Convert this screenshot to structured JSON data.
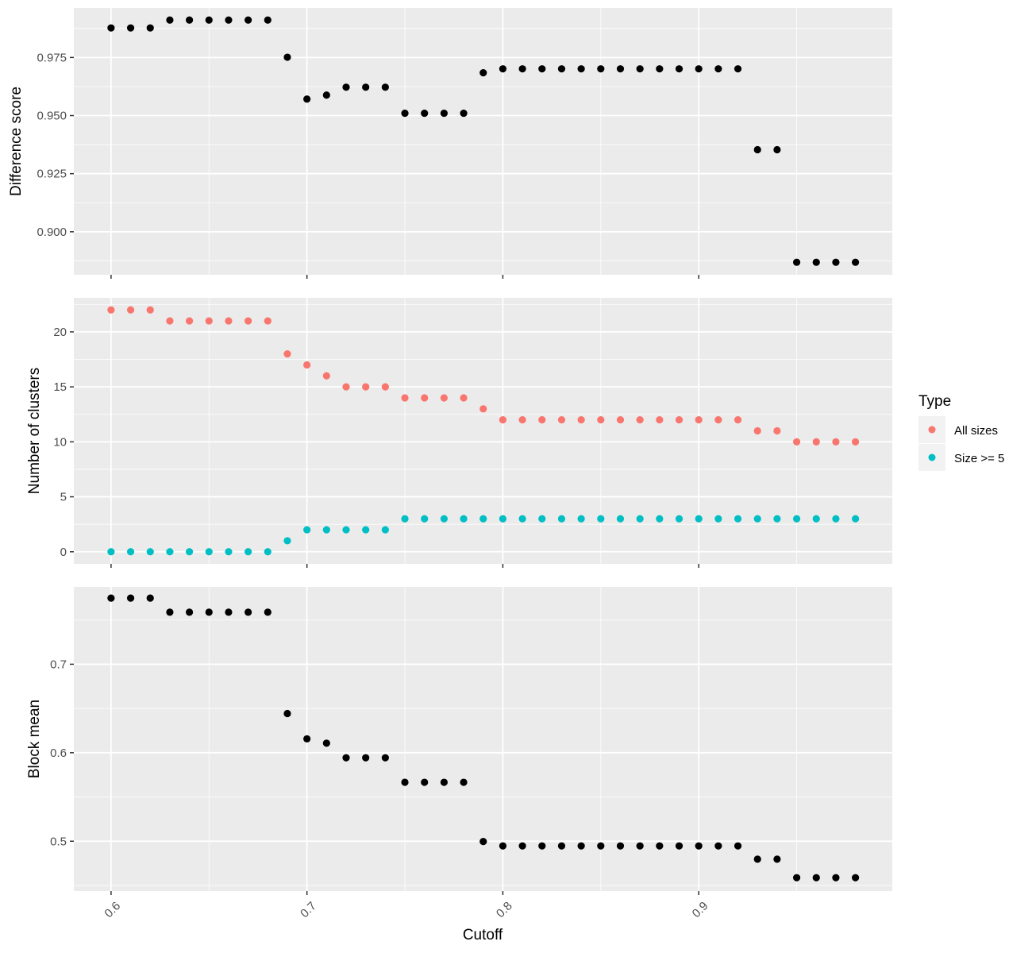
{
  "chart_data": [
    {
      "type": "scatter",
      "ylabel": "Difference score",
      "xlim": [
        0.581,
        0.9988
      ],
      "ylim": [
        0.8815,
        0.9963
      ],
      "y_ticks": [
        0.9,
        0.925,
        0.95,
        0.975
      ],
      "y_tick_labels": [
        "0.900",
        "0.925",
        "0.950",
        "0.975"
      ],
      "grid": true,
      "series": [
        {
          "color": "#000000",
          "x": [
            0.6,
            0.61,
            0.62,
            0.63,
            0.64,
            0.65,
            0.66,
            0.67,
            0.68,
            0.69,
            0.7,
            0.71,
            0.72,
            0.73,
            0.74,
            0.75,
            0.76,
            0.77,
            0.78,
            0.79,
            0.8,
            0.81,
            0.82,
            0.83,
            0.84,
            0.85,
            0.86,
            0.87,
            0.88,
            0.89,
            0.9,
            0.91,
            0.92,
            0.93,
            0.94,
            0.95,
            0.96,
            0.97,
            0.98
          ],
          "y": [
            0.9877,
            0.9877,
            0.9877,
            0.9911,
            0.9911,
            0.9911,
            0.9911,
            0.9911,
            0.9911,
            0.9751,
            0.9571,
            0.9588,
            0.9622,
            0.9622,
            0.9622,
            0.951,
            0.951,
            0.951,
            0.951,
            0.9684,
            0.9701,
            0.9701,
            0.9701,
            0.9701,
            0.9701,
            0.9701,
            0.9701,
            0.9701,
            0.9701,
            0.9701,
            0.9701,
            0.9701,
            0.9701,
            0.9353,
            0.9353,
            0.8869,
            0.8869,
            0.8869,
            0.8869
          ]
        }
      ]
    },
    {
      "type": "scatter",
      "ylabel": "Number of clusters",
      "xlim": [
        0.581,
        0.9988
      ],
      "ylim": [
        -1.1,
        23.1
      ],
      "y_ticks": [
        0,
        5,
        10,
        15,
        20
      ],
      "y_tick_labels": [
        "0",
        "5",
        "10",
        "15",
        "20"
      ],
      "grid": true,
      "series": [
        {
          "name": "All sizes",
          "color": "#F8766D",
          "x": [
            0.6,
            0.61,
            0.62,
            0.63,
            0.64,
            0.65,
            0.66,
            0.67,
            0.68,
            0.69,
            0.7,
            0.71,
            0.72,
            0.73,
            0.74,
            0.75,
            0.76,
            0.77,
            0.78,
            0.79,
            0.8,
            0.81,
            0.82,
            0.83,
            0.84,
            0.85,
            0.86,
            0.87,
            0.88,
            0.89,
            0.9,
            0.91,
            0.92,
            0.93,
            0.94,
            0.95,
            0.96,
            0.97,
            0.98
          ],
          "y": [
            22,
            22,
            22,
            21,
            21,
            21,
            21,
            21,
            21,
            18,
            17,
            16,
            15,
            15,
            15,
            14,
            14,
            14,
            14,
            13,
            12,
            12,
            12,
            12,
            12,
            12,
            12,
            12,
            12,
            12,
            12,
            12,
            12,
            11,
            11,
            10,
            10,
            10,
            10
          ]
        },
        {
          "name": "Size >= 5",
          "color": "#00BFC4",
          "x": [
            0.6,
            0.61,
            0.62,
            0.63,
            0.64,
            0.65,
            0.66,
            0.67,
            0.68,
            0.69,
            0.7,
            0.71,
            0.72,
            0.73,
            0.74,
            0.75,
            0.76,
            0.77,
            0.78,
            0.79,
            0.8,
            0.81,
            0.82,
            0.83,
            0.84,
            0.85,
            0.86,
            0.87,
            0.88,
            0.89,
            0.9,
            0.91,
            0.92,
            0.93,
            0.94,
            0.95,
            0.96,
            0.97,
            0.98
          ],
          "y": [
            0,
            0,
            0,
            0,
            0,
            0,
            0,
            0,
            0,
            1,
            2,
            2,
            2,
            2,
            2,
            3,
            3,
            3,
            3,
            3,
            3,
            3,
            3,
            3,
            3,
            3,
            3,
            3,
            3,
            3,
            3,
            3,
            3,
            3,
            3,
            3,
            3,
            3,
            3
          ]
        }
      ]
    },
    {
      "type": "scatter",
      "ylabel": "Block mean",
      "xlabel": "Cutoff",
      "xlim": [
        0.581,
        0.9988
      ],
      "ylim": [
        0.4437,
        0.7874
      ],
      "y_ticks": [
        0.5,
        0.6,
        0.7
      ],
      "y_tick_labels": [
        "0.5",
        "0.6",
        "0.7"
      ],
      "grid": true,
      "series": [
        {
          "color": "#000000",
          "x": [
            0.6,
            0.61,
            0.62,
            0.63,
            0.64,
            0.65,
            0.66,
            0.67,
            0.68,
            0.69,
            0.7,
            0.71,
            0.72,
            0.73,
            0.74,
            0.75,
            0.76,
            0.77,
            0.78,
            0.79,
            0.8,
            0.81,
            0.82,
            0.83,
            0.84,
            0.85,
            0.86,
            0.87,
            0.88,
            0.89,
            0.9,
            0.91,
            0.92,
            0.93,
            0.94,
            0.95,
            0.96,
            0.97,
            0.98
          ],
          "y": [
            0.7747,
            0.7747,
            0.7747,
            0.7588,
            0.7588,
            0.7588,
            0.7588,
            0.7588,
            0.7588,
            0.6443,
            0.6157,
            0.6108,
            0.5943,
            0.5943,
            0.5943,
            0.5666,
            0.5666,
            0.5666,
            0.5666,
            0.4997,
            0.4947,
            0.4947,
            0.4947,
            0.4947,
            0.4947,
            0.4947,
            0.4947,
            0.4947,
            0.4947,
            0.4947,
            0.4947,
            0.4947,
            0.4947,
            0.4797,
            0.4797,
            0.4588,
            0.4588,
            0.4588,
            0.4588
          ]
        }
      ]
    }
  ],
  "shared_x_axis": {
    "title": "Cutoff",
    "ticks": [
      0.6,
      0.7,
      0.8,
      0.9
    ],
    "tick_labels": [
      "0.6",
      "0.7",
      "0.8",
      "0.9"
    ],
    "tick_label_rotation_deg": -45
  },
  "legend": {
    "title": "Type",
    "placement": "right",
    "items": [
      {
        "label": "All sizes",
        "color": "#F8766D"
      },
      {
        "label": "Size >= 5",
        "color": "#00BFC4"
      }
    ]
  },
  "theme": {
    "panel_background": "#EBEBEB",
    "grid_major": "#FFFFFF",
    "point_default": "#000000"
  }
}
